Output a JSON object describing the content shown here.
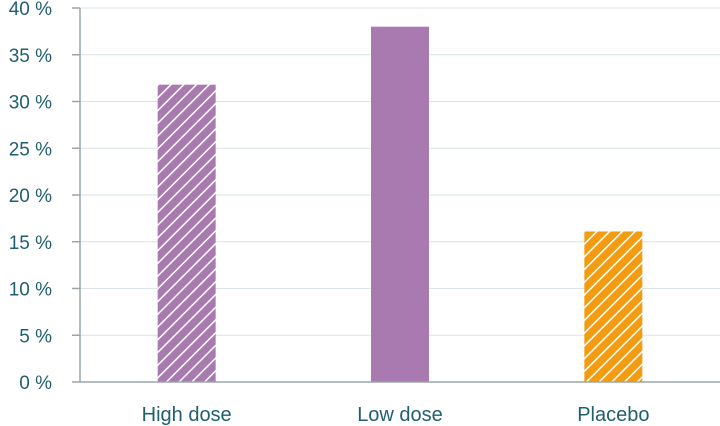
{
  "chart_data": {
    "type": "bar",
    "categories": [
      "High dose",
      "Low dose",
      "Placebo"
    ],
    "values": [
      31.8,
      38,
      16.1
    ],
    "ylim": [
      0,
      40
    ],
    "yticks": [
      0,
      5,
      10,
      15,
      20,
      25,
      30,
      35,
      40
    ],
    "ytick_suffix": " %",
    "grid": true,
    "colors": [
      "#a97ab0",
      "#a97ab0",
      "#f39c12"
    ],
    "patterns": [
      "hatched",
      "solid",
      "hatched"
    ]
  }
}
